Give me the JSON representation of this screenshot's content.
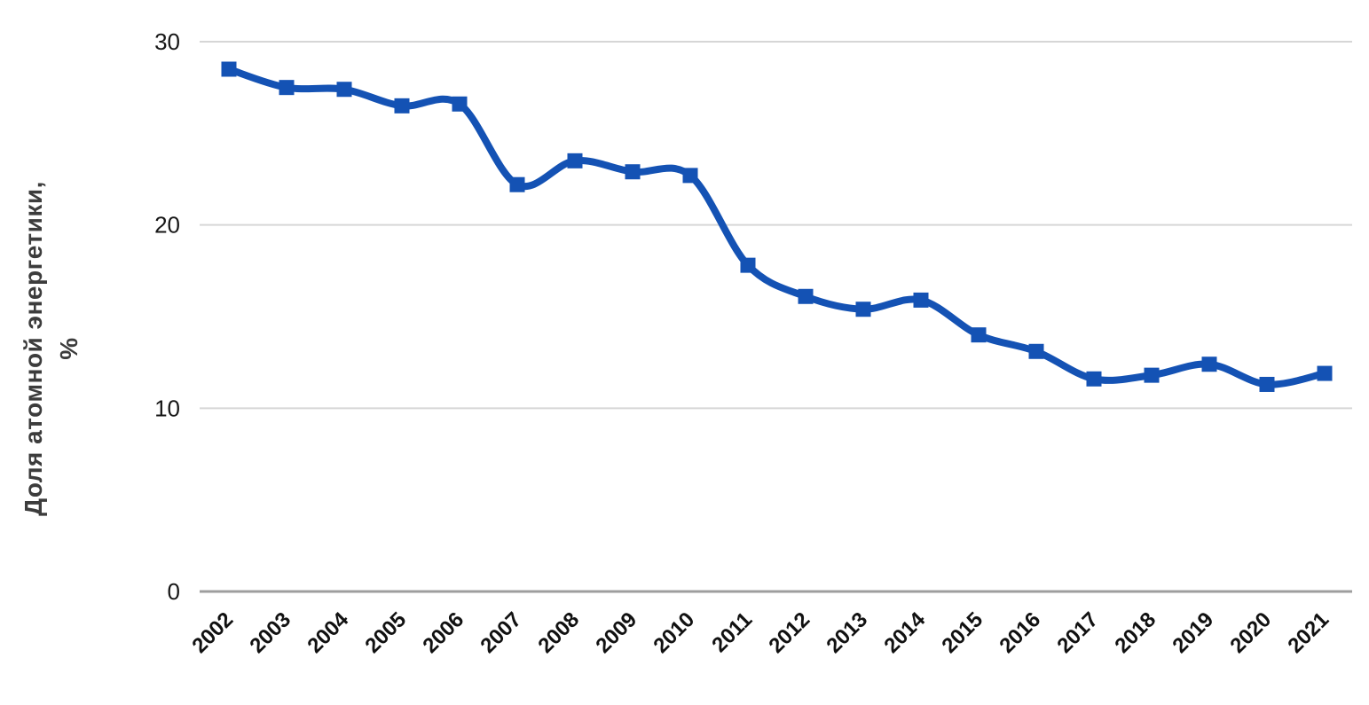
{
  "axis": {
    "ylabel_line1": "Доля атомной энергетики,",
    "ylabel_line2": "%"
  },
  "chart_data": {
    "type": "line",
    "title": "",
    "categories": [
      "2002",
      "2003",
      "2004",
      "2005",
      "2006",
      "2007",
      "2008",
      "2009",
      "2010",
      "2011",
      "2012",
      "2013",
      "2014",
      "2015",
      "2016",
      "2017",
      "2018",
      "2019",
      "2020",
      "2021"
    ],
    "series": [
      {
        "name": "Доля атомной энергетики, %",
        "values": [
          28.5,
          27.5,
          27.4,
          26.5,
          26.6,
          22.2,
          23.5,
          22.9,
          22.7,
          17.8,
          16.1,
          15.4,
          15.9,
          14.0,
          13.1,
          11.6,
          11.8,
          12.4,
          11.3,
          11.9
        ]
      }
    ],
    "xlabel": "",
    "ylabel": "Доля атомной энергетики, %",
    "ylim": [
      0,
      30
    ],
    "yticks": [
      0,
      10,
      20,
      30
    ],
    "grid": true,
    "legend_position": "none",
    "line_style": "smooth",
    "marker": "square",
    "colors": {
      "line": "#1452b4",
      "marker": "#1452b4",
      "gridline": "#d6d6d6",
      "axis_line": "#9e9e9e",
      "tick_text": "#161616",
      "axis_title_text": "#3c3c3c"
    }
  }
}
